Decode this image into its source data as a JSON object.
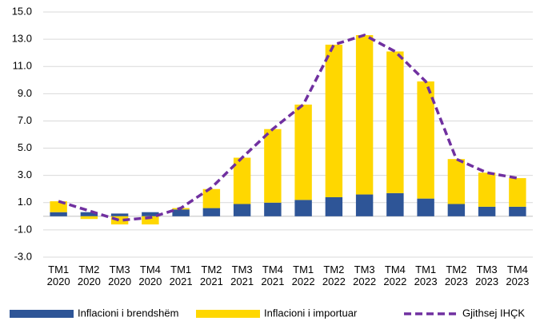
{
  "chart_data": {
    "type": "bar",
    "stacked": true,
    "categories": [
      "TM1 2020",
      "TM2 2020",
      "TM3 2020",
      "TM4 2020",
      "TM1 2021",
      "TM2 2021",
      "TM3 2021",
      "TM4 2021",
      "TM1 2022",
      "TM2 2022",
      "TM3 2022",
      "TM4 2022",
      "TM1 2023",
      "TM2 2023",
      "TM3 2023",
      "TM4 2023"
    ],
    "series": [
      {
        "name": "Inflacioni i brendshëm",
        "type": "bar",
        "color": "#2e5597",
        "values": [
          0.3,
          0.3,
          0.2,
          0.3,
          0.5,
          0.6,
          0.9,
          1.0,
          1.2,
          1.4,
          1.6,
          1.7,
          1.3,
          0.9,
          0.7,
          0.7
        ]
      },
      {
        "name": "Inflacioni i importuar",
        "type": "bar",
        "color": "#ffd700",
        "values": [
          0.8,
          -0.2,
          -0.6,
          -0.6,
          0.1,
          1.4,
          3.4,
          5.4,
          7.0,
          11.2,
          11.7,
          10.4,
          8.6,
          3.3,
          2.5,
          2.1
        ]
      },
      {
        "name": "Gjithsej IHÇK",
        "type": "line",
        "color": "#7030a0",
        "values": [
          1.1,
          0.4,
          -0.3,
          -0.1,
          0.6,
          2.1,
          4.3,
          6.4,
          8.2,
          12.6,
          13.3,
          12.1,
          9.9,
          4.2,
          3.2,
          2.8
        ]
      }
    ],
    "ylim": [
      -3,
      15
    ],
    "yticks": [
      {
        "value": -3,
        "label": "-3.0"
      },
      {
        "value": -1,
        "label": "-1.0"
      },
      {
        "value": 1,
        "label": "1.0"
      },
      {
        "value": 3,
        "label": "3.0"
      },
      {
        "value": 5,
        "label": "5.0"
      },
      {
        "value": 7,
        "label": "7.0"
      },
      {
        "value": 9,
        "label": "9.0"
      },
      {
        "value": 11,
        "label": "11.0"
      },
      {
        "value": 13,
        "label": "13.0"
      },
      {
        "value": 15,
        "label": "15.0"
      }
    ],
    "grid": true,
    "legend": "bottom"
  }
}
